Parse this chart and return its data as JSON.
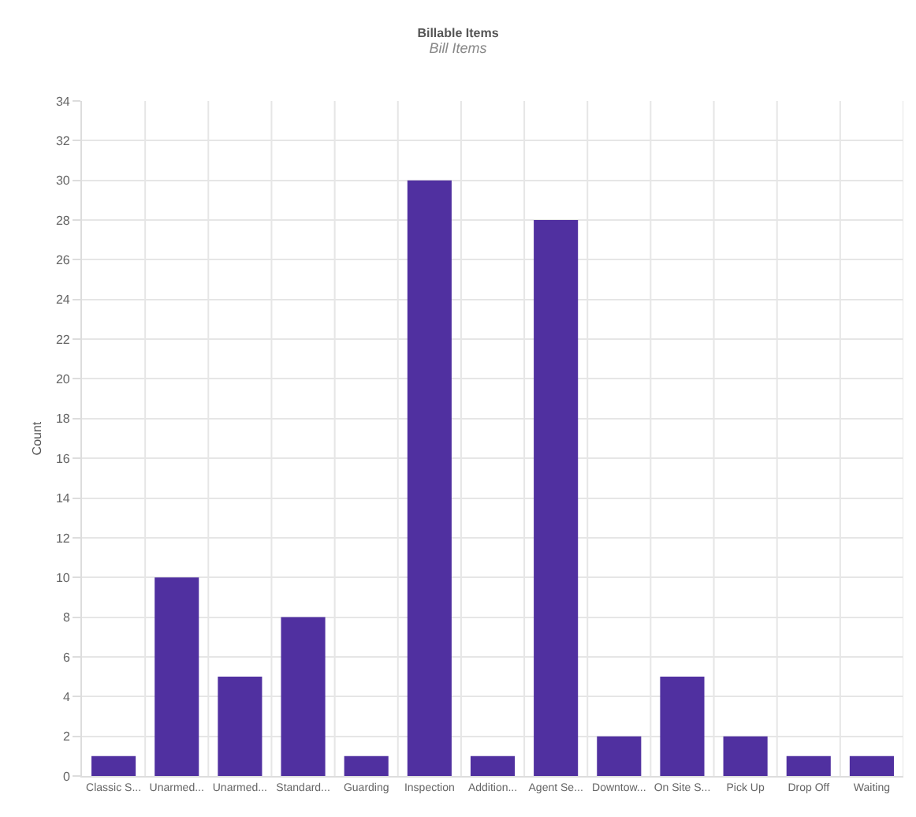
{
  "chart_data": {
    "type": "bar",
    "title": "Billable Items",
    "subtitle": "Bill Items",
    "ylabel": "Count",
    "categories": [
      "Classic S...",
      "Unarmed...",
      "Unarmed...",
      "Standard...",
      "Guarding",
      "Inspection",
      "Addition...",
      "Agent Se...",
      "Downtow...",
      "On Site S...",
      "Pick Up",
      "Drop Off",
      "Waiting"
    ],
    "values": [
      1,
      10,
      5,
      8,
      1,
      30,
      1,
      28,
      2,
      5,
      2,
      1,
      1
    ],
    "color": "#5030a0",
    "ylim": [
      0,
      34
    ],
    "yticks": [
      0,
      2,
      4,
      6,
      8,
      10,
      12,
      14,
      16,
      18,
      20,
      22,
      24,
      26,
      28,
      30,
      32,
      34
    ],
    "grid": true
  }
}
